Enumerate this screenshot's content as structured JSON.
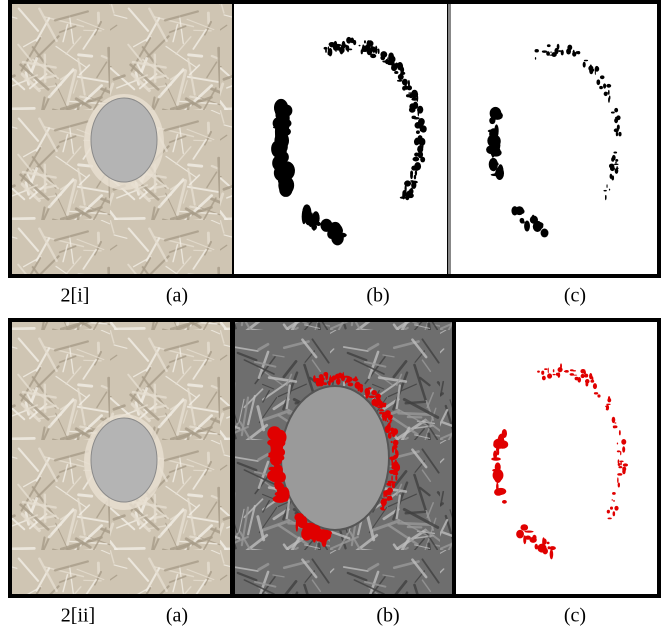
{
  "rows": [
    {
      "label": "2[i]",
      "captions": [
        "(a)",
        "(b)",
        "(c)"
      ]
    },
    {
      "label": "2[ii]",
      "captions": [
        "(a)",
        "(b)",
        "(c)"
      ]
    }
  ]
}
